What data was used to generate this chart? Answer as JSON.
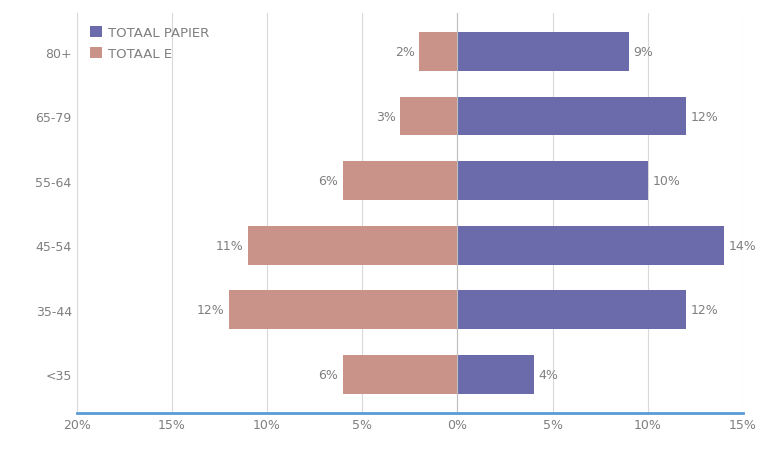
{
  "categories": [
    "<35",
    "35-44",
    "45-54",
    "55-64",
    "65-79",
    "80+"
  ],
  "totaal_e": [
    -6,
    -12,
    -11,
    -6,
    -3,
    -2
  ],
  "totaal_papier": [
    4,
    12,
    14,
    10,
    12,
    9
  ],
  "totaal_e_labels": [
    "6%",
    "12%",
    "11%",
    "6%",
    "3%",
    "2%"
  ],
  "totaal_papier_labels": [
    "4%",
    "12%",
    "14%",
    "10%",
    "12%",
    "9%"
  ],
  "color_e": "#c9938a",
  "color_papier": "#6b6bab",
  "legend_papier": "TOTAAL PAPIER",
  "legend_e": "TOTAAL E",
  "xlim": [
    -20,
    15
  ],
  "xticks": [
    -20,
    -15,
    -10,
    -5,
    0,
    5,
    10,
    15
  ],
  "xtick_labels": [
    "20%",
    "15%",
    "10%",
    "5%",
    "0%",
    "5%",
    "10%",
    "15%"
  ],
  "background_color": "#ffffff",
  "bar_height": 0.6,
  "label_fontsize": 9,
  "tick_fontsize": 9,
  "legend_fontsize": 9.5
}
